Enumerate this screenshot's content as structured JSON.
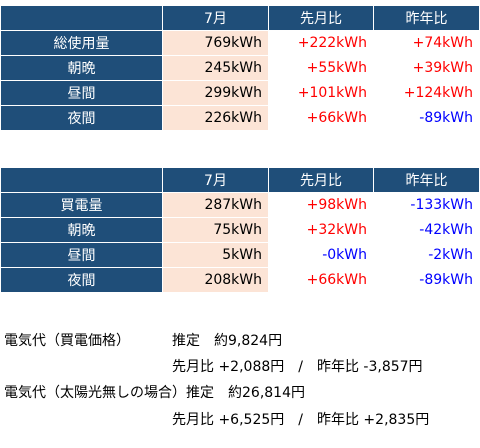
{
  "table1": {
    "headers": [
      "7月",
      "先月比",
      "昨年比"
    ],
    "rows": [
      {
        "label": "総使用量",
        "month": "769kWh",
        "mom": "+222kWh",
        "yoy": "+74kWh"
      },
      {
        "label": "朝晩",
        "month": "245kWh",
        "mom": "+55kWh",
        "yoy": "+39kWh"
      },
      {
        "label": "昼間",
        "month": "299kWh",
        "mom": "+101kWh",
        "yoy": "+124kWh"
      },
      {
        "label": "夜間",
        "month": "226kWh",
        "mom": "+66kWh",
        "yoy": "-89kWh"
      }
    ]
  },
  "table2": {
    "headers": [
      "7月",
      "先月比",
      "昨年比"
    ],
    "rows": [
      {
        "label": "買電量",
        "month": "287kWh",
        "mom": "+98kWh",
        "yoy": "-133kWh"
      },
      {
        "label": "朝晩",
        "month": "75kWh",
        "mom": "+32kWh",
        "yoy": "-42kWh"
      },
      {
        "label": "昼間",
        "month": "5kWh",
        "mom": "-0kWh",
        "yoy": "-2kWh"
      },
      {
        "label": "夜間",
        "month": "208kWh",
        "mom": "+66kWh",
        "yoy": "-89kWh"
      }
    ]
  },
  "summary": {
    "line1_label": "電気代（買電価格）",
    "line1_est": "推定　約9,824円",
    "line1_compare": "先月比 +2,088円　/　昨年比 -3,857円",
    "line2_label": "電気代（太陽光無しの場合）推定　約26,814円",
    "line2_compare": "先月比 +6,525円　/　昨年比 +2,835円"
  },
  "colors": {
    "header_bg": "#1f4e79",
    "month_bg": "#fce4d6",
    "positive": "#ff0000",
    "negative": "#0000ff"
  }
}
